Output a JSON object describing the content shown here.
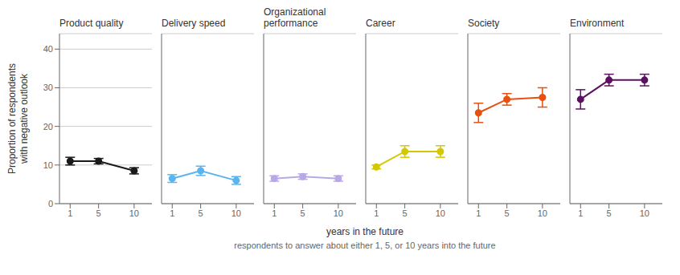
{
  "chart_data": [
    {
      "type": "line",
      "title": "Product quality",
      "color": "#1a1a1a",
      "marker": "circle",
      "x": [
        1,
        5,
        10
      ],
      "values": [
        11.0,
        11.0,
        8.5
      ],
      "errors_low": [
        1.0,
        0.7,
        0.8
      ],
      "errors_high": [
        1.0,
        0.7,
        0.8
      ],
      "xlim": [
        -0.5,
        12.5
      ],
      "xticks": [
        1,
        5,
        10
      ],
      "ylim": [
        0,
        44
      ],
      "yticks": [
        0,
        10,
        20,
        30,
        40
      ],
      "grid": true,
      "ylabel": "Proportion of respondents\nwith negative outlook"
    },
    {
      "type": "line",
      "title": "Delivery speed",
      "color": "#5ab4f0",
      "marker": "circle",
      "x": [
        1,
        5,
        10
      ],
      "values": [
        6.5,
        8.5,
        6.0
      ],
      "errors_low": [
        1.0,
        1.2,
        1.0
      ],
      "errors_high": [
        1.0,
        1.2,
        1.0
      ],
      "xlim": [
        -0.5,
        12.5
      ],
      "xticks": [
        1,
        5,
        10
      ],
      "ylim": [
        0,
        44
      ],
      "yticks": [
        0,
        10,
        20,
        30,
        40
      ],
      "grid": true,
      "tick_labels": "x"
    },
    {
      "type": "line",
      "title": "Organizational\nperformance",
      "color": "#b8a8e8",
      "marker": "circle",
      "x": [
        1,
        5,
        10
      ],
      "values": [
        6.5,
        7.0,
        6.5
      ],
      "errors_low": [
        0.7,
        0.7,
        0.7
      ],
      "errors_high": [
        0.7,
        0.7,
        0.7
      ],
      "xlim": [
        -0.5,
        12.5
      ],
      "xticks": [
        1,
        5,
        10
      ],
      "ylim": [
        0,
        44
      ],
      "yticks": [
        0,
        10,
        20,
        30,
        40
      ],
      "grid": true,
      "tick_labels": "x"
    },
    {
      "type": "line",
      "title": "Career",
      "color": "#d4c800",
      "marker": "circle",
      "x": [
        1,
        5,
        10
      ],
      "values": [
        9.5,
        13.5,
        13.5
      ],
      "errors_low": [
        0.5,
        1.5,
        1.5
      ],
      "errors_high": [
        0.5,
        1.5,
        1.5
      ],
      "xlim": [
        -0.5,
        12.5
      ],
      "xticks": [
        1,
        5,
        10
      ],
      "ylim": [
        0,
        44
      ],
      "yticks": [
        0,
        10,
        20,
        30,
        40
      ],
      "grid": true,
      "tick_labels": "x"
    },
    {
      "type": "line",
      "title": "Society",
      "color": "#e85010",
      "marker": "circle",
      "x": [
        1,
        5,
        10
      ],
      "values": [
        23.5,
        27.0,
        27.5
      ],
      "errors_low": [
        2.5,
        1.5,
        2.5
      ],
      "errors_high": [
        2.5,
        1.5,
        2.5
      ],
      "xlim": [
        -0.5,
        12.5
      ],
      "xticks": [
        1,
        5,
        10
      ],
      "ylim": [
        0,
        44
      ],
      "yticks": [
        0,
        10,
        20,
        30,
        40
      ],
      "grid": true,
      "tick_labels": "x"
    },
    {
      "type": "line",
      "title": "Environment",
      "color": "#5c1060",
      "marker": "circle",
      "x": [
        1,
        5,
        10
      ],
      "values": [
        27.0,
        32.0,
        32.0
      ],
      "errors_low": [
        2.5,
        1.5,
        1.5
      ],
      "errors_high": [
        2.5,
        1.5,
        1.5
      ],
      "xlim": [
        -0.5,
        12.5
      ],
      "xticks": [
        1,
        5,
        10
      ],
      "ylim": [
        0,
        44
      ],
      "yticks": [
        0,
        10,
        20,
        30,
        40
      ],
      "grid": true,
      "tick_labels": "x"
    }
  ],
  "xlabel": "years in the future",
  "subtitle": "respondents to answer about either 1, 5, or 10 years into the future"
}
